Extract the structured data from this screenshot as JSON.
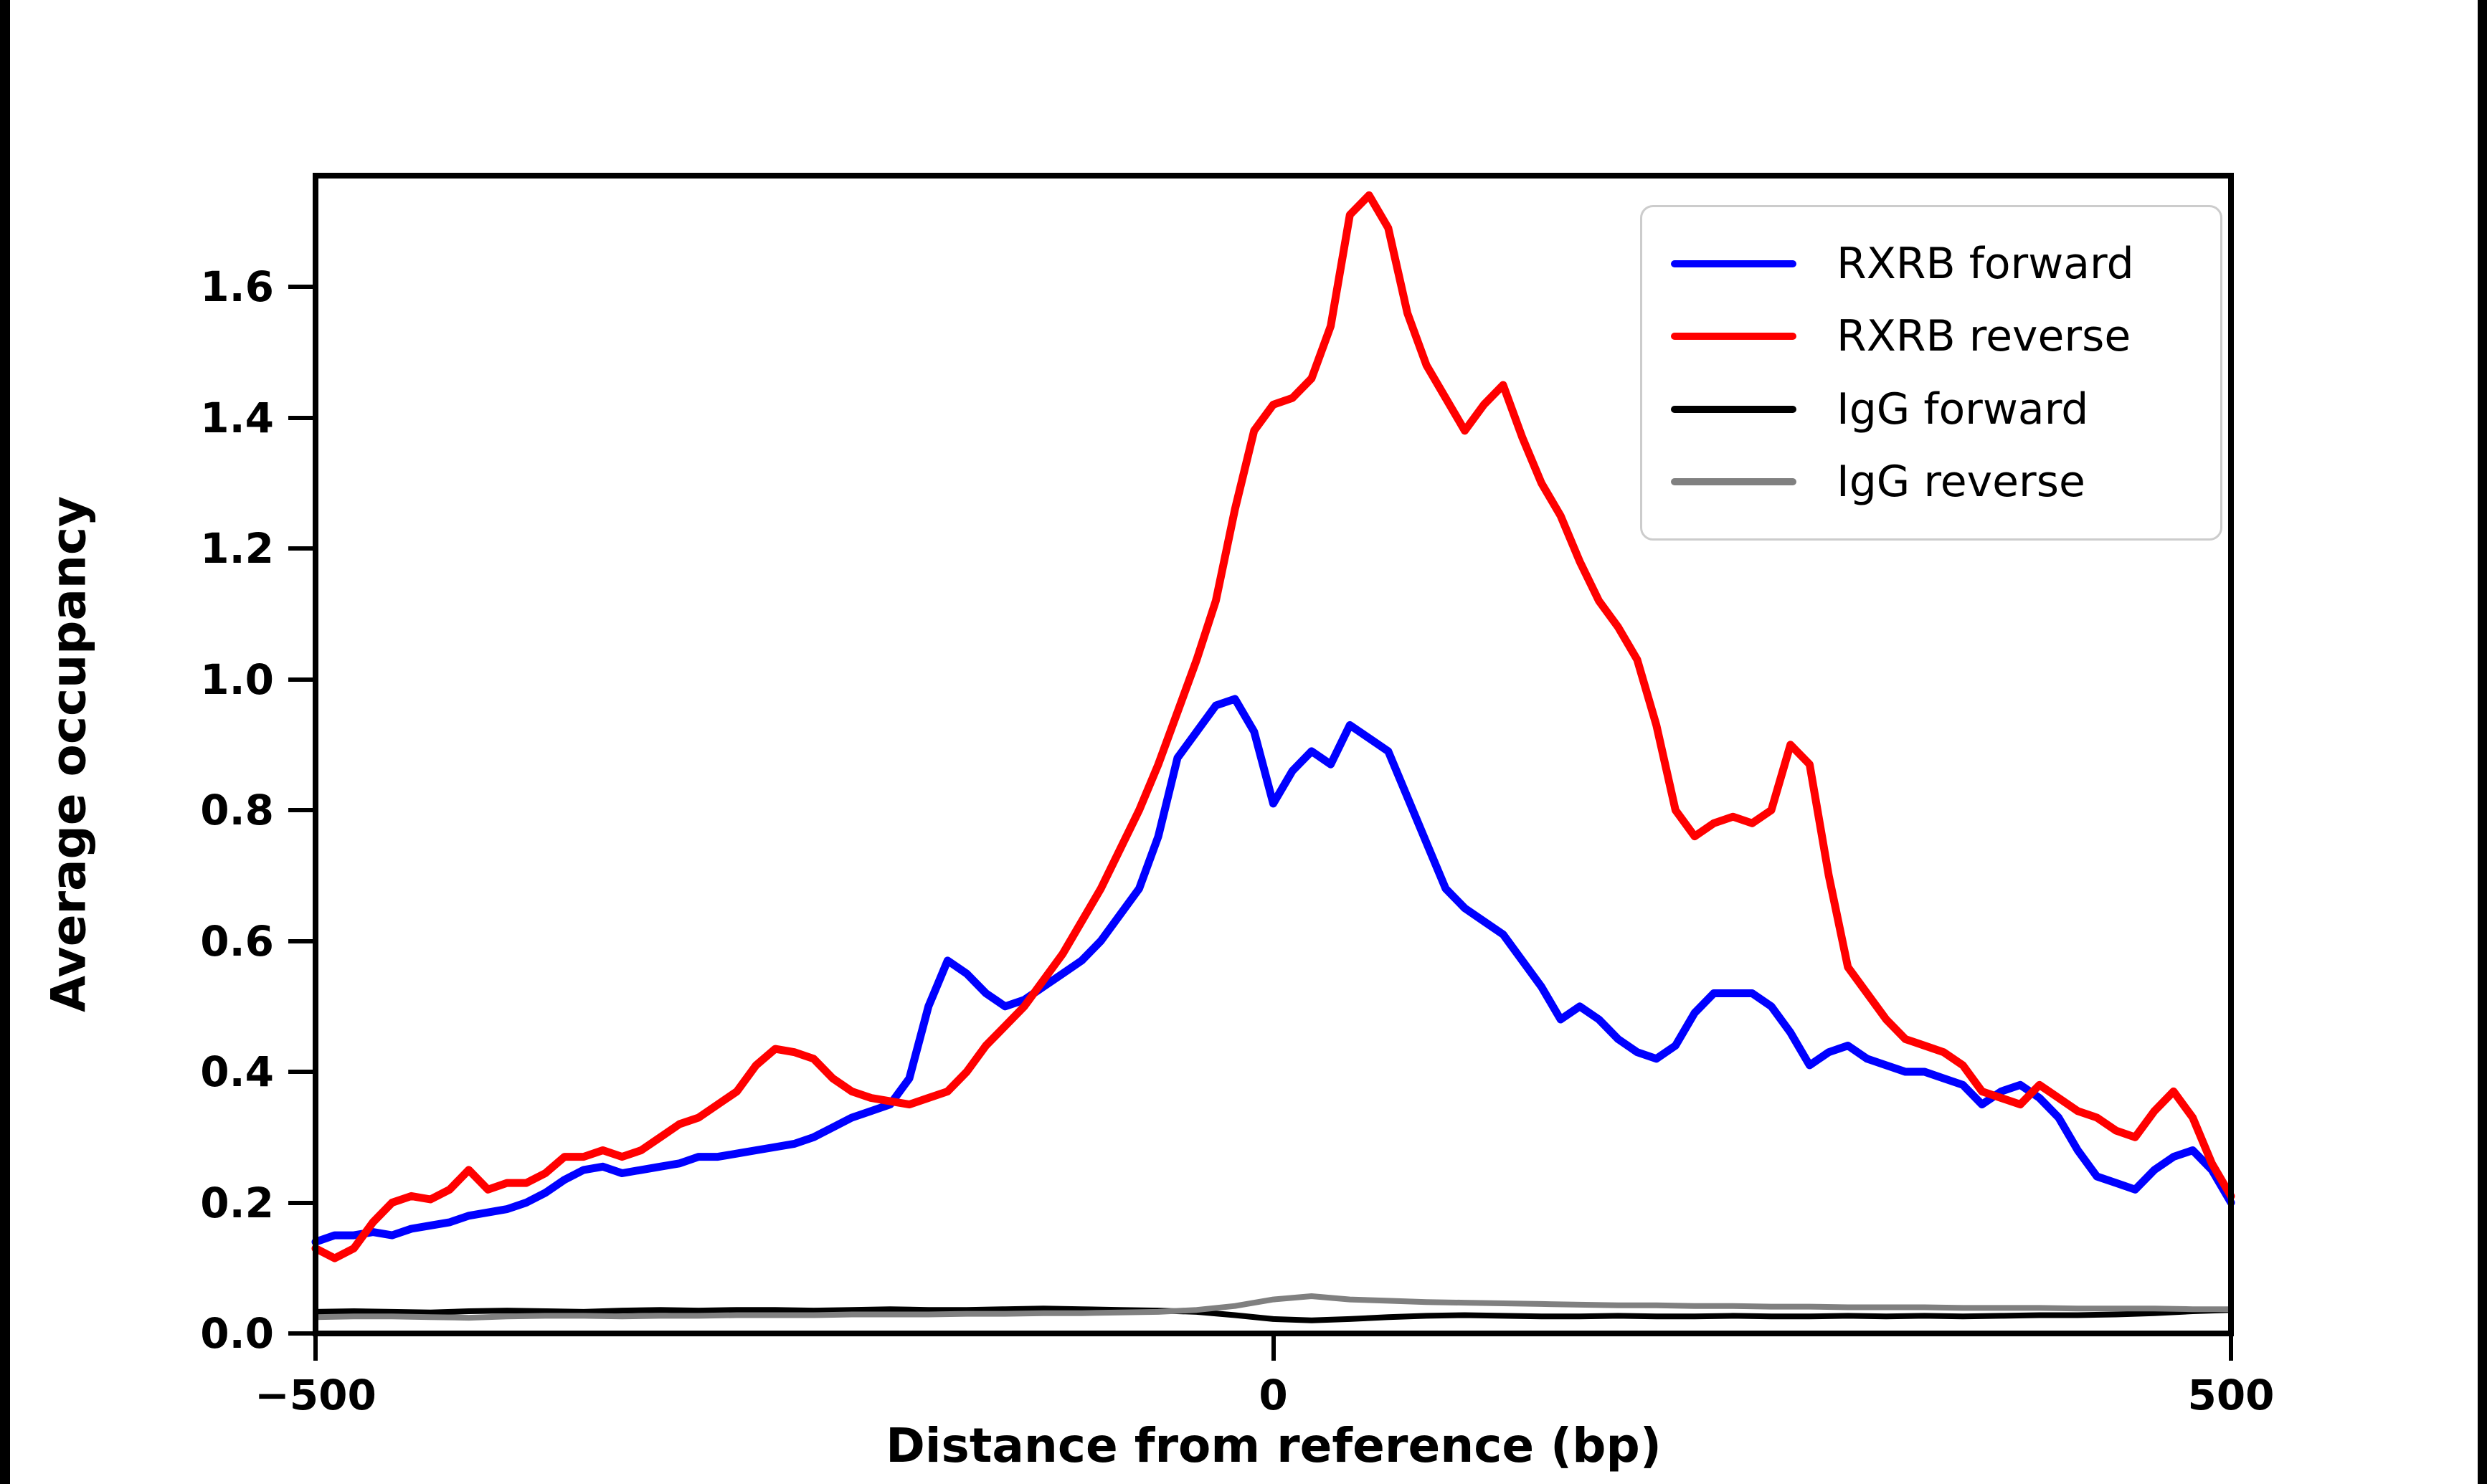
{
  "figure": {
    "background": "#ffffff",
    "edge_bar_color": "#000000"
  },
  "axes": {
    "xlabel": "Distance from reference (bp)",
    "ylabel": "Average occupancy",
    "xtick_labels": [
      "−500",
      "0",
      "500"
    ],
    "ytick_labels": [
      "0.0",
      "0.2",
      "0.4",
      "0.6",
      "0.8",
      "1.0",
      "1.2",
      "1.4",
      "1.6"
    ],
    "spine_color": "#000000"
  },
  "legend": {
    "position": "upper right",
    "entries": [
      {
        "label": "RXRB forward",
        "color": "#0000ff"
      },
      {
        "label": "RXRB reverse",
        "color": "#ff0000"
      },
      {
        "label": "IgG forward",
        "color": "#000000"
      },
      {
        "label": "IgG reverse",
        "color": "#808080"
      }
    ]
  },
  "chart_data": {
    "type": "line",
    "title": "",
    "xlabel": "Distance from reference (bp)",
    "ylabel": "Average occupancy",
    "xlim": [
      -500,
      500
    ],
    "ylim": [
      0,
      1.77
    ],
    "xticks": [
      -500,
      0,
      500
    ],
    "yticks": [
      0.0,
      0.2,
      0.4,
      0.6,
      0.8,
      1.0,
      1.2,
      1.4,
      1.6
    ],
    "grid": false,
    "legend_position": "upper right",
    "series": [
      {
        "name": "RXRB forward",
        "color": "#0000ff",
        "linewidth": 11,
        "x": [
          -500,
          -490,
          -480,
          -470,
          -460,
          -450,
          -440,
          -430,
          -420,
          -410,
          -400,
          -390,
          -380,
          -370,
          -360,
          -350,
          -340,
          -330,
          -320,
          -310,
          -300,
          -290,
          -280,
          -270,
          -260,
          -250,
          -240,
          -230,
          -220,
          -210,
          -200,
          -190,
          -180,
          -170,
          -160,
          -150,
          -140,
          -130,
          -120,
          -110,
          -100,
          -90,
          -80,
          -70,
          -60,
          -50,
          -40,
          -30,
          -20,
          -10,
          0,
          10,
          20,
          30,
          40,
          50,
          60,
          70,
          80,
          90,
          100,
          110,
          120,
          130,
          140,
          150,
          160,
          170,
          180,
          190,
          200,
          210,
          220,
          230,
          240,
          250,
          260,
          270,
          280,
          290,
          300,
          310,
          320,
          330,
          340,
          350,
          360,
          370,
          380,
          390,
          400,
          410,
          420,
          430,
          440,
          450,
          460,
          470,
          480,
          490,
          500
        ],
        "y": [
          0.14,
          0.15,
          0.15,
          0.155,
          0.15,
          0.16,
          0.165,
          0.17,
          0.18,
          0.185,
          0.19,
          0.2,
          0.215,
          0.235,
          0.25,
          0.255,
          0.245,
          0.25,
          0.255,
          0.26,
          0.27,
          0.27,
          0.275,
          0.28,
          0.285,
          0.29,
          0.3,
          0.315,
          0.33,
          0.34,
          0.35,
          0.39,
          0.5,
          0.57,
          0.55,
          0.52,
          0.5,
          0.51,
          0.53,
          0.55,
          0.57,
          0.6,
          0.64,
          0.68,
          0.76,
          0.88,
          0.92,
          0.96,
          0.97,
          0.92,
          0.81,
          0.86,
          0.89,
          0.87,
          0.93,
          0.91,
          0.89,
          0.82,
          0.75,
          0.68,
          0.65,
          0.63,
          0.61,
          0.57,
          0.53,
          0.48,
          0.5,
          0.48,
          0.45,
          0.43,
          0.42,
          0.44,
          0.49,
          0.52,
          0.52,
          0.52,
          0.5,
          0.46,
          0.41,
          0.43,
          0.44,
          0.42,
          0.41,
          0.4,
          0.4,
          0.39,
          0.38,
          0.35,
          0.37,
          0.38,
          0.36,
          0.33,
          0.28,
          0.24,
          0.23,
          0.22,
          0.25,
          0.27,
          0.28,
          0.25,
          0.2
        ]
      },
      {
        "name": "RXRB reverse",
        "color": "#ff0000",
        "linewidth": 11,
        "x": [
          -500,
          -490,
          -480,
          -470,
          -460,
          -450,
          -440,
          -430,
          -420,
          -410,
          -400,
          -390,
          -380,
          -370,
          -360,
          -350,
          -340,
          -330,
          -320,
          -310,
          -300,
          -290,
          -280,
          -270,
          -260,
          -250,
          -240,
          -230,
          -220,
          -210,
          -200,
          -190,
          -180,
          -170,
          -160,
          -150,
          -140,
          -130,
          -120,
          -110,
          -100,
          -90,
          -80,
          -70,
          -60,
          -50,
          -40,
          -30,
          -20,
          -10,
          0,
          10,
          20,
          30,
          40,
          50,
          60,
          70,
          80,
          90,
          100,
          110,
          120,
          130,
          140,
          150,
          160,
          170,
          180,
          190,
          200,
          210,
          220,
          230,
          240,
          250,
          260,
          270,
          280,
          290,
          300,
          310,
          320,
          330,
          340,
          350,
          360,
          370,
          380,
          390,
          400,
          410,
          420,
          430,
          440,
          450,
          460,
          470,
          480,
          490,
          500
        ],
        "y": [
          0.13,
          0.115,
          0.13,
          0.17,
          0.2,
          0.21,
          0.205,
          0.22,
          0.25,
          0.22,
          0.23,
          0.23,
          0.245,
          0.27,
          0.27,
          0.28,
          0.27,
          0.28,
          0.3,
          0.32,
          0.33,
          0.35,
          0.37,
          0.41,
          0.435,
          0.43,
          0.42,
          0.39,
          0.37,
          0.36,
          0.355,
          0.35,
          0.36,
          0.37,
          0.4,
          0.44,
          0.47,
          0.5,
          0.54,
          0.58,
          0.63,
          0.68,
          0.74,
          0.8,
          0.87,
          0.95,
          1.03,
          1.12,
          1.26,
          1.38,
          1.42,
          1.43,
          1.46,
          1.54,
          1.71,
          1.74,
          1.69,
          1.56,
          1.48,
          1.43,
          1.38,
          1.42,
          1.45,
          1.37,
          1.3,
          1.25,
          1.18,
          1.12,
          1.08,
          1.03,
          0.93,
          0.8,
          0.76,
          0.78,
          0.79,
          0.78,
          0.8,
          0.9,
          0.87,
          0.7,
          0.56,
          0.52,
          0.48,
          0.45,
          0.44,
          0.43,
          0.41,
          0.37,
          0.36,
          0.35,
          0.38,
          0.36,
          0.34,
          0.33,
          0.31,
          0.3,
          0.34,
          0.37,
          0.33,
          0.26,
          0.21
        ]
      },
      {
        "name": "IgG forward",
        "color": "#000000",
        "linewidth": 8,
        "x": [
          -500,
          -480,
          -460,
          -440,
          -420,
          -400,
          -380,
          -360,
          -340,
          -320,
          -300,
          -280,
          -260,
          -240,
          -220,
          -200,
          -180,
          -160,
          -140,
          -120,
          -100,
          -80,
          -60,
          -40,
          -20,
          0,
          20,
          40,
          60,
          80,
          100,
          120,
          140,
          160,
          180,
          200,
          220,
          240,
          260,
          280,
          300,
          320,
          340,
          360,
          380,
          400,
          420,
          440,
          460,
          480,
          500
        ],
        "y": [
          0.033,
          0.034,
          0.033,
          0.032,
          0.034,
          0.035,
          0.034,
          0.033,
          0.035,
          0.036,
          0.035,
          0.036,
          0.036,
          0.035,
          0.036,
          0.037,
          0.036,
          0.036,
          0.037,
          0.038,
          0.037,
          0.036,
          0.035,
          0.033,
          0.028,
          0.022,
          0.02,
          0.022,
          0.025,
          0.027,
          0.028,
          0.027,
          0.026,
          0.026,
          0.027,
          0.026,
          0.026,
          0.027,
          0.026,
          0.026,
          0.027,
          0.026,
          0.027,
          0.026,
          0.027,
          0.028,
          0.028,
          0.029,
          0.031,
          0.034,
          0.036
        ]
      },
      {
        "name": "IgG reverse",
        "color": "#808080",
        "linewidth": 8,
        "x": [
          -500,
          -480,
          -460,
          -440,
          -420,
          -400,
          -380,
          -360,
          -340,
          -320,
          -300,
          -280,
          -260,
          -240,
          -220,
          -200,
          -180,
          -160,
          -140,
          -120,
          -100,
          -80,
          -60,
          -40,
          -20,
          0,
          20,
          40,
          60,
          80,
          100,
          120,
          140,
          160,
          180,
          200,
          220,
          240,
          260,
          280,
          300,
          320,
          340,
          360,
          380,
          400,
          420,
          440,
          460,
          480,
          500
        ],
        "y": [
          0.025,
          0.026,
          0.026,
          0.025,
          0.024,
          0.026,
          0.027,
          0.027,
          0.026,
          0.027,
          0.027,
          0.028,
          0.028,
          0.028,
          0.029,
          0.029,
          0.029,
          0.03,
          0.03,
          0.031,
          0.031,
          0.032,
          0.033,
          0.036,
          0.042,
          0.052,
          0.057,
          0.052,
          0.05,
          0.048,
          0.047,
          0.046,
          0.045,
          0.044,
          0.043,
          0.043,
          0.042,
          0.042,
          0.041,
          0.041,
          0.04,
          0.04,
          0.04,
          0.039,
          0.039,
          0.039,
          0.038,
          0.038,
          0.038,
          0.037,
          0.037
        ]
      }
    ]
  }
}
